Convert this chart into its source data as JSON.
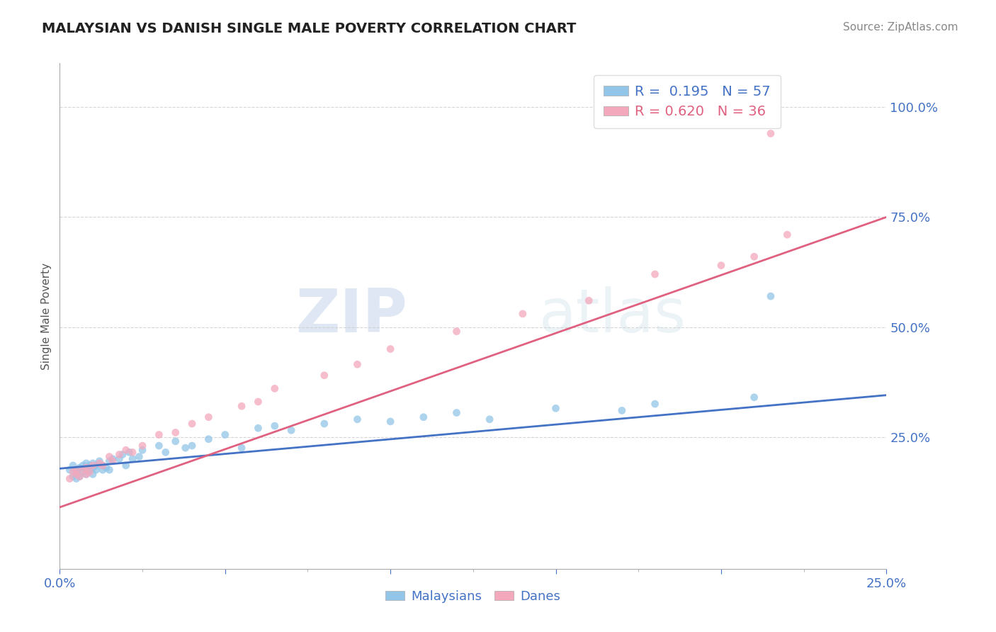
{
  "title": "MALAYSIAN VS DANISH SINGLE MALE POVERTY CORRELATION CHART",
  "source": "Source: ZipAtlas.com",
  "ylabel": "Single Male Poverty",
  "xlim": [
    0.0,
    0.25
  ],
  "ylim": [
    -0.05,
    1.1
  ],
  "xtick_positions": [
    0.0,
    0.05,
    0.1,
    0.15,
    0.2,
    0.25
  ],
  "xtick_labels": [
    "0.0%",
    "",
    "",
    "",
    "",
    "25.0%"
  ],
  "ytick_vals": [
    1.0,
    0.75,
    0.5,
    0.25
  ],
  "ytick_labels": [
    "100.0%",
    "75.0%",
    "50.0%",
    "25.0%"
  ],
  "blue_R": 0.195,
  "blue_N": 57,
  "pink_R": 0.62,
  "pink_N": 36,
  "blue_color": "#92C5E8",
  "pink_color": "#F4A8BC",
  "blue_line_color": "#4472C4",
  "pink_line_color": "#E06080",
  "watermark_zip": "ZIP",
  "watermark_atlas": "atlas",
  "legend_label1": "Malaysians",
  "legend_label2": "Danes",
  "blue_x": [
    0.003,
    0.004,
    0.004,
    0.005,
    0.005,
    0.005,
    0.005,
    0.006,
    0.006,
    0.007,
    0.007,
    0.008,
    0.008,
    0.008,
    0.009,
    0.009,
    0.01,
    0.01,
    0.01,
    0.011,
    0.011,
    0.012,
    0.013,
    0.013,
    0.014,
    0.015,
    0.015,
    0.016,
    0.018,
    0.019,
    0.02,
    0.021,
    0.022,
    0.024,
    0.025,
    0.03,
    0.032,
    0.035,
    0.038,
    0.04,
    0.045,
    0.05,
    0.055,
    0.06,
    0.065,
    0.07,
    0.08,
    0.09,
    0.1,
    0.11,
    0.12,
    0.13,
    0.15,
    0.17,
    0.18,
    0.21,
    0.215
  ],
  "blue_y": [
    0.175,
    0.16,
    0.185,
    0.175,
    0.165,
    0.155,
    0.17,
    0.18,
    0.16,
    0.17,
    0.185,
    0.175,
    0.165,
    0.19,
    0.175,
    0.185,
    0.18,
    0.165,
    0.19,
    0.185,
    0.175,
    0.195,
    0.185,
    0.175,
    0.18,
    0.195,
    0.175,
    0.2,
    0.2,
    0.21,
    0.185,
    0.215,
    0.2,
    0.205,
    0.22,
    0.23,
    0.215,
    0.24,
    0.225,
    0.23,
    0.245,
    0.255,
    0.225,
    0.27,
    0.275,
    0.265,
    0.28,
    0.29,
    0.285,
    0.295,
    0.305,
    0.29,
    0.315,
    0.31,
    0.325,
    0.34,
    0.57
  ],
  "pink_x": [
    0.003,
    0.004,
    0.005,
    0.005,
    0.006,
    0.007,
    0.008,
    0.008,
    0.009,
    0.01,
    0.012,
    0.013,
    0.015,
    0.016,
    0.018,
    0.02,
    0.022,
    0.025,
    0.03,
    0.035,
    0.04,
    0.045,
    0.055,
    0.06,
    0.065,
    0.08,
    0.09,
    0.1,
    0.12,
    0.14,
    0.16,
    0.18,
    0.2,
    0.21,
    0.215,
    0.22
  ],
  "pink_y": [
    0.155,
    0.17,
    0.165,
    0.175,
    0.16,
    0.175,
    0.18,
    0.165,
    0.17,
    0.185,
    0.19,
    0.185,
    0.205,
    0.195,
    0.21,
    0.22,
    0.215,
    0.23,
    0.255,
    0.26,
    0.28,
    0.295,
    0.32,
    0.33,
    0.36,
    0.39,
    0.415,
    0.45,
    0.49,
    0.53,
    0.56,
    0.62,
    0.64,
    0.66,
    0.94,
    0.71
  ],
  "blue_line_x": [
    0.0,
    0.25
  ],
  "blue_line_y": [
    0.178,
    0.345
  ],
  "pink_line_x": [
    0.0,
    0.25
  ],
  "pink_line_y": [
    0.09,
    0.75
  ]
}
